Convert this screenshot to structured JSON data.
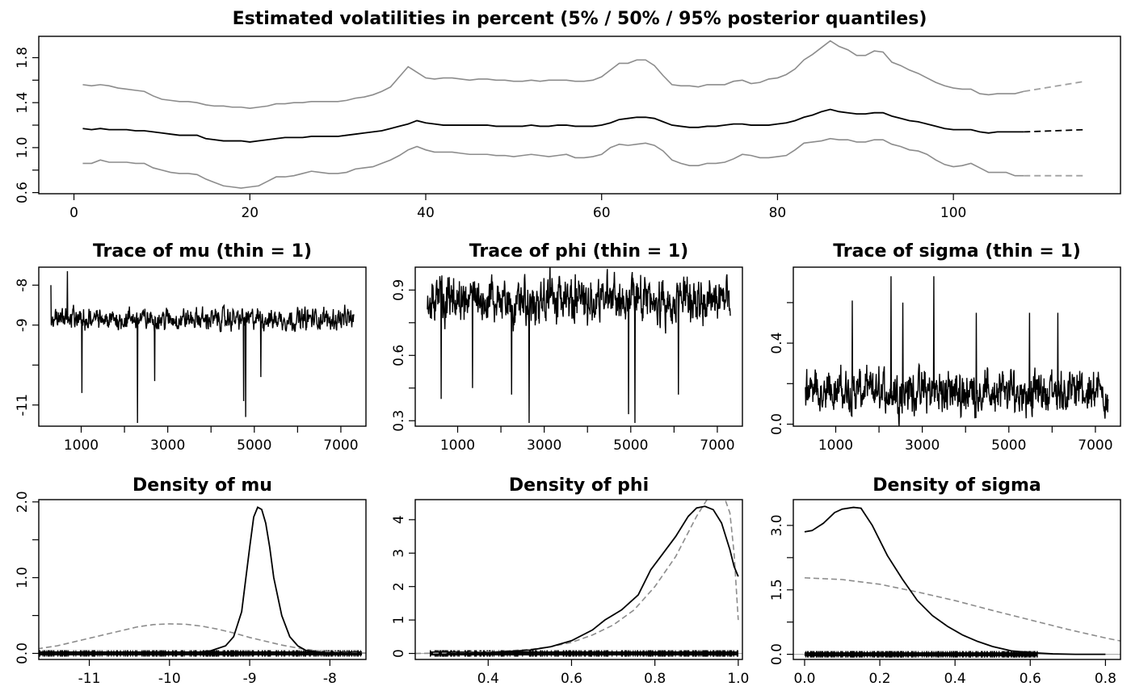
{
  "chart_data": [
    {
      "type": "line",
      "title": "Estimated volatilities in percent (5% / 50% / 95% posterior quantiles)",
      "xlim": [
        -4,
        119
      ],
      "ylim": [
        0.59,
        1.99
      ],
      "xticks": [
        0,
        20,
        40,
        60,
        80,
        100
      ],
      "yticks": [
        0.6,
        1.0,
        1.4,
        1.8
      ],
      "yticklabels": [
        "0.6",
        "1.0",
        "1.4",
        "1.8"
      ],
      "yminorticks": [
        0.8,
        1.2,
        1.6
      ],
      "colors": {
        "median": "#000000",
        "bands": "#8c8c8c",
        "forecast_bands": "#a0a0a0"
      },
      "x": [
        1,
        2,
        3,
        4,
        5,
        6,
        7,
        8,
        9,
        10,
        11,
        12,
        13,
        14,
        15,
        16,
        17,
        18,
        19,
        20,
        21,
        22,
        23,
        24,
        25,
        26,
        27,
        28,
        29,
        30,
        31,
        32,
        33,
        34,
        35,
        36,
        37,
        38,
        39,
        40,
        41,
        42,
        43,
        44,
        45,
        46,
        47,
        48,
        49,
        50,
        51,
        52,
        53,
        54,
        55,
        56,
        57,
        58,
        59,
        60,
        61,
        62,
        63,
        64,
        65,
        66,
        67,
        68,
        69,
        70,
        71,
        72,
        73,
        74,
        75,
        76,
        77,
        78,
        79,
        80,
        81,
        82,
        83,
        84,
        85,
        86,
        87,
        88,
        89,
        90,
        91,
        92,
        93,
        94,
        95,
        96,
        97,
        98,
        99,
        100,
        101,
        102,
        103,
        104,
        105,
        106,
        107,
        108
      ],
      "series": [
        {
          "values": [
            1.56,
            1.55,
            1.56,
            1.55,
            1.53,
            1.52,
            1.51,
            1.5,
            1.46,
            1.43,
            1.42,
            1.41,
            1.41,
            1.4,
            1.38,
            1.37,
            1.37,
            1.36,
            1.36,
            1.35,
            1.36,
            1.37,
            1.39,
            1.39,
            1.4,
            1.4,
            1.41,
            1.41,
            1.41,
            1.41,
            1.42,
            1.44,
            1.45,
            1.47,
            1.5,
            1.54,
            1.63,
            1.72,
            1.67,
            1.62,
            1.61,
            1.62,
            1.62,
            1.61,
            1.6,
            1.61,
            1.61,
            1.6,
            1.6,
            1.59,
            1.59,
            1.6,
            1.59,
            1.6,
            1.6,
            1.6,
            1.59,
            1.59,
            1.6,
            1.63,
            1.69,
            1.75,
            1.75,
            1.78,
            1.78,
            1.73,
            1.64,
            1.56,
            1.55,
            1.55,
            1.54,
            1.56,
            1.56,
            1.56,
            1.59,
            1.6,
            1.57,
            1.58,
            1.61,
            1.62,
            1.65,
            1.7,
            1.78,
            1.83,
            1.89,
            1.95,
            1.9,
            1.87,
            1.82,
            1.82,
            1.86,
            1.85,
            1.76,
            1.73,
            1.69,
            1.66,
            1.62,
            1.58,
            1.55,
            1.53,
            1.52,
            1.52,
            1.48,
            1.47,
            1.48,
            1.48,
            1.48,
            1.5
          ]
        },
        {
          "values": [
            1.17,
            1.16,
            1.17,
            1.16,
            1.16,
            1.16,
            1.15,
            1.15,
            1.14,
            1.13,
            1.12,
            1.11,
            1.11,
            1.11,
            1.08,
            1.07,
            1.06,
            1.06,
            1.06,
            1.05,
            1.06,
            1.07,
            1.08,
            1.09,
            1.09,
            1.09,
            1.1,
            1.1,
            1.1,
            1.1,
            1.11,
            1.12,
            1.13,
            1.14,
            1.15,
            1.17,
            1.19,
            1.21,
            1.24,
            1.22,
            1.21,
            1.2,
            1.2,
            1.2,
            1.2,
            1.2,
            1.2,
            1.19,
            1.19,
            1.19,
            1.19,
            1.2,
            1.19,
            1.19,
            1.2,
            1.2,
            1.19,
            1.19,
            1.19,
            1.2,
            1.22,
            1.25,
            1.26,
            1.27,
            1.27,
            1.26,
            1.23,
            1.2,
            1.19,
            1.18,
            1.18,
            1.19,
            1.19,
            1.2,
            1.21,
            1.21,
            1.2,
            1.2,
            1.2,
            1.21,
            1.22,
            1.24,
            1.27,
            1.29,
            1.32,
            1.34,
            1.32,
            1.31,
            1.3,
            1.3,
            1.31,
            1.31,
            1.28,
            1.26,
            1.24,
            1.23,
            1.21,
            1.19,
            1.17,
            1.16,
            1.16,
            1.16,
            1.14,
            1.13,
            1.14,
            1.14,
            1.14,
            1.14
          ]
        },
        {
          "values": [
            0.86,
            0.86,
            0.89,
            0.87,
            0.87,
            0.87,
            0.86,
            0.86,
            0.82,
            0.8,
            0.78,
            0.77,
            0.77,
            0.76,
            0.72,
            0.69,
            0.66,
            0.65,
            0.64,
            0.65,
            0.66,
            0.7,
            0.74,
            0.74,
            0.75,
            0.77,
            0.79,
            0.78,
            0.77,
            0.77,
            0.78,
            0.81,
            0.82,
            0.83,
            0.86,
            0.89,
            0.93,
            0.98,
            1.01,
            0.98,
            0.96,
            0.96,
            0.96,
            0.95,
            0.94,
            0.94,
            0.94,
            0.93,
            0.93,
            0.92,
            0.93,
            0.94,
            0.93,
            0.92,
            0.93,
            0.94,
            0.91,
            0.91,
            0.92,
            0.94,
            1.0,
            1.03,
            1.02,
            1.03,
            1.04,
            1.02,
            0.97,
            0.89,
            0.86,
            0.84,
            0.84,
            0.86,
            0.86,
            0.87,
            0.9,
            0.94,
            0.93,
            0.91,
            0.91,
            0.92,
            0.93,
            0.98,
            1.04,
            1.05,
            1.06,
            1.08,
            1.07,
            1.07,
            1.05,
            1.05,
            1.07,
            1.07,
            1.03,
            1.01,
            0.98,
            0.97,
            0.94,
            0.89,
            0.85,
            0.83,
            0.84,
            0.86,
            0.82,
            0.78,
            0.78,
            0.78,
            0.75,
            0.75
          ]
        }
      ],
      "forecast": {
        "x": [
          108,
          115
        ],
        "series": [
          {
            "values": [
              1.5,
              1.59
            ]
          },
          {
            "values": [
              1.14,
              1.16
            ]
          },
          {
            "values": [
              0.75,
              0.75
            ]
          }
        ]
      }
    },
    {
      "type": "line",
      "title": "Trace of mu (thin = 1)",
      "xlim": [
        20,
        7580
      ],
      "ylim": [
        -11.53,
        -7.55
      ],
      "xticks": [
        1000,
        3000,
        5000,
        7000
      ],
      "xminorticks": [
        2000,
        4000,
        6000
      ],
      "yticks": [
        -11,
        -9,
        -8
      ],
      "yticklabels": [
        "-11",
        "-9",
        "-8"
      ],
      "yminorticks": [
        -10
      ],
      "trace": {
        "start": 300,
        "end": 7300,
        "center": -8.85,
        "lower": -9.2,
        "upper": -8.5,
        "extremes": [
          [
            300,
            -8.0
          ],
          [
            680,
            -7.65
          ],
          [
            1020,
            -10.7
          ],
          [
            2300,
            -11.45
          ],
          [
            2700,
            -10.4
          ],
          [
            4750,
            -10.9
          ],
          [
            4800,
            -11.3
          ],
          [
            5150,
            -10.3
          ]
        ]
      }
    },
    {
      "type": "line",
      "title": "Trace of phi (thin = 1)",
      "xlim": [
        20,
        7580
      ],
      "ylim": [
        0.275,
        1.005
      ],
      "xticks": [
        1000,
        3000,
        5000,
        7000
      ],
      "xminorticks": [
        2000,
        4000,
        6000
      ],
      "yticks": [
        0.3,
        0.6,
        0.9
      ],
      "yticklabels": [
        "0.3",
        "0.6",
        "0.9"
      ],
      "yminorticks": [
        0.45,
        0.75
      ],
      "trace": {
        "start": 300,
        "end": 7300,
        "center": 0.88,
        "lower": 0.72,
        "upper": 0.99,
        "extremes": [
          [
            620,
            0.4
          ],
          [
            1340,
            0.45
          ],
          [
            2250,
            0.42
          ],
          [
            2650,
            0.29
          ],
          [
            4950,
            0.33
          ],
          [
            5100,
            0.29
          ],
          [
            6100,
            0.42
          ]
        ]
      }
    },
    {
      "type": "line",
      "title": "Trace of sigma (thin = 1)",
      "xlim": [
        20,
        7580
      ],
      "ylim": [
        -0.01,
        0.775
      ],
      "xticks": [
        1000,
        3000,
        5000,
        7000
      ],
      "xminorticks": [
        2000,
        4000,
        6000
      ],
      "yticks": [
        0.0,
        0.4
      ],
      "yticklabels": [
        "0.0",
        "0.4"
      ],
      "yminorticks": [
        0.2,
        0.6
      ],
      "trace": {
        "start": 300,
        "end": 7300,
        "center": 0.15,
        "lower": 0.02,
        "upper": 0.3,
        "extremes": [
          [
            1380,
            0.61
          ],
          [
            2280,
            0.73
          ],
          [
            2550,
            0.6
          ],
          [
            3270,
            0.73
          ],
          [
            4250,
            0.55
          ],
          [
            5480,
            0.55
          ],
          [
            6130,
            0.55
          ]
        ]
      }
    },
    {
      "type": "line",
      "title": "Density of mu",
      "xlim": [
        -11.63,
        -7.55
      ],
      "ylim": [
        -0.08,
        2.03
      ],
      "xticks": [
        -11,
        -10,
        -9,
        -8
      ],
      "yticks": [
        0.0,
        1.0,
        2.0
      ],
      "yticklabels": [
        "0.0",
        "1.0",
        "2.0"
      ],
      "yminorticks": [
        0.5,
        1.5
      ],
      "posterior": {
        "x": [
          -11.6,
          -9.7,
          -9.5,
          -9.3,
          -9.2,
          -9.1,
          -9.0,
          -8.95,
          -8.9,
          -8.85,
          -8.8,
          -8.75,
          -8.7,
          -8.6,
          -8.5,
          -8.4,
          -8.3,
          -8.1,
          -7.6
        ],
        "values": [
          0,
          0.01,
          0.03,
          0.1,
          0.22,
          0.55,
          1.4,
          1.8,
          1.93,
          1.9,
          1.72,
          1.4,
          1.0,
          0.5,
          0.22,
          0.1,
          0.04,
          0.01,
          0
        ]
      },
      "prior": {
        "x": [
          -11.65,
          -11.4,
          -11.2,
          -11.0,
          -10.8,
          -10.6,
          -10.4,
          -10.2,
          -10.0,
          -9.8,
          -9.6,
          -9.4,
          -9.2,
          -9.0,
          -8.8,
          -8.6,
          -8.4,
          -8.2,
          -8.0,
          -7.8,
          -7.55
        ],
        "values": [
          0.06,
          0.1,
          0.15,
          0.2,
          0.25,
          0.3,
          0.35,
          0.38,
          0.39,
          0.385,
          0.36,
          0.32,
          0.27,
          0.21,
          0.16,
          0.11,
          0.07,
          0.04,
          0.02,
          0.01,
          0.005
        ]
      },
      "rug": [
        -11.63,
        -7.6
      ]
    },
    {
      "type": "line",
      "title": "Density of phi",
      "xlim": [
        0.225,
        1.01
      ],
      "ylim": [
        -0.18,
        4.6
      ],
      "xticks": [
        0.4,
        0.6,
        0.8,
        1.0
      ],
      "xticklabels": [
        "0.4",
        "0.6",
        "0.8",
        "1.0"
      ],
      "yticks": [
        0,
        1,
        2,
        3,
        4
      ],
      "yticklabels": [
        "0",
        "1",
        "2",
        "3",
        "4"
      ],
      "posterior": {
        "x": [
          0.3,
          0.4,
          0.5,
          0.55,
          0.6,
          0.65,
          0.68,
          0.72,
          0.76,
          0.79,
          0.82,
          0.85,
          0.88,
          0.9,
          0.92,
          0.94,
          0.96,
          0.98,
          0.99,
          1.0
        ],
        "values": [
          0,
          0.02,
          0.1,
          0.2,
          0.38,
          0.7,
          1.0,
          1.3,
          1.75,
          2.5,
          3.0,
          3.5,
          4.1,
          4.35,
          4.4,
          4.3,
          3.9,
          3.1,
          2.6,
          2.3
        ]
      },
      "prior": {
        "x": [
          0.225,
          0.3,
          0.4,
          0.5,
          0.55,
          0.6,
          0.65,
          0.7,
          0.75,
          0.8,
          0.85,
          0.9,
          0.93,
          0.96,
          0.98,
          0.99,
          0.996,
          1.0
        ],
        "values": [
          0.0,
          0.01,
          0.04,
          0.12,
          0.2,
          0.33,
          0.55,
          0.85,
          1.3,
          2.0,
          2.9,
          4.1,
          4.7,
          4.9,
          4.2,
          3.0,
          1.8,
          1.0
        ]
      },
      "rug": [
        0.26,
        1.0
      ]
    },
    {
      "type": "line",
      "title": "Density of sigma",
      "xlim": [
        -0.03,
        0.84
      ],
      "ylim": [
        -0.12,
        3.6
      ],
      "xticks": [
        0.0,
        0.2,
        0.4,
        0.6,
        0.8
      ],
      "xticklabels": [
        "0.0",
        "0.2",
        "0.4",
        "0.6",
        "0.8"
      ],
      "yticks": [
        0.0,
        1.5,
        3.0
      ],
      "yticklabels": [
        "0.0",
        "1.5",
        "3.0"
      ],
      "yminorticks": [
        0.75,
        2.25
      ],
      "posterior": {
        "x": [
          0.0,
          0.02,
          0.05,
          0.08,
          0.1,
          0.13,
          0.15,
          0.18,
          0.22,
          0.26,
          0.3,
          0.34,
          0.38,
          0.42,
          0.46,
          0.5,
          0.55,
          0.6,
          0.66,
          0.72,
          0.8
        ],
        "values": [
          2.85,
          2.88,
          3.05,
          3.3,
          3.38,
          3.42,
          3.4,
          3.0,
          2.3,
          1.75,
          1.25,
          0.9,
          0.65,
          0.45,
          0.3,
          0.18,
          0.08,
          0.04,
          0.01,
          0.0,
          0.0
        ]
      },
      "prior": {
        "x": [
          0.0,
          0.1,
          0.2,
          0.3,
          0.4,
          0.5,
          0.6,
          0.7,
          0.8,
          0.84
        ],
        "values": [
          1.78,
          1.74,
          1.63,
          1.45,
          1.25,
          1.02,
          0.8,
          0.58,
          0.38,
          0.31
        ]
      },
      "rug": [
        0.0,
        0.62
      ]
    }
  ]
}
